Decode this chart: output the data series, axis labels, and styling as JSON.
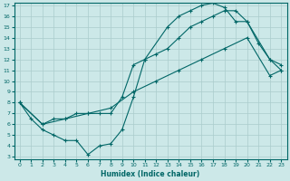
{
  "xlabel": "Humidex (Indice chaleur)",
  "bg_color": "#cce8e8",
  "grid_color": "#aacccc",
  "line_color": "#006666",
  "xlim": [
    -0.5,
    23.5
  ],
  "ylim": [
    3,
    17
  ],
  "xticks": [
    0,
    1,
    2,
    3,
    4,
    5,
    6,
    7,
    8,
    9,
    10,
    11,
    12,
    13,
    14,
    15,
    16,
    17,
    18,
    19,
    20,
    21,
    22,
    23
  ],
  "yticks": [
    3,
    4,
    5,
    6,
    7,
    8,
    9,
    10,
    11,
    12,
    13,
    14,
    15,
    16,
    17
  ],
  "line1_x": [
    0,
    1,
    2,
    3,
    4,
    5,
    6,
    7,
    8,
    9,
    10,
    11,
    13,
    14,
    15,
    16,
    17,
    18,
    19,
    20,
    21,
    22,
    23
  ],
  "line1_y": [
    8,
    6.5,
    5.5,
    5.0,
    4.5,
    4.5,
    3.2,
    4.0,
    4.2,
    5.5,
    8.5,
    12.0,
    15.0,
    16.0,
    16.5,
    17.0,
    17.2,
    16.8,
    15.5,
    15.5,
    13.5,
    12.0,
    11.0
  ],
  "line2_x": [
    0,
    2,
    3,
    4,
    5,
    6,
    7,
    8,
    9,
    10,
    11,
    12,
    13,
    14,
    15,
    16,
    17,
    18,
    19,
    20,
    22,
    23
  ],
  "line2_y": [
    8,
    6.0,
    6.5,
    6.5,
    7.0,
    7.0,
    7.0,
    7.0,
    8.5,
    11.5,
    12.0,
    12.5,
    13.0,
    14.0,
    15.0,
    15.5,
    16.0,
    16.5,
    16.5,
    15.5,
    12.0,
    11.5
  ],
  "line3_x": [
    0,
    2,
    4,
    6,
    8,
    10,
    12,
    14,
    16,
    18,
    20,
    22,
    23
  ],
  "line3_y": [
    8,
    6.0,
    6.5,
    7.0,
    7.5,
    9.0,
    10.0,
    11.0,
    12.0,
    13.0,
    14.0,
    10.5,
    11.0
  ]
}
